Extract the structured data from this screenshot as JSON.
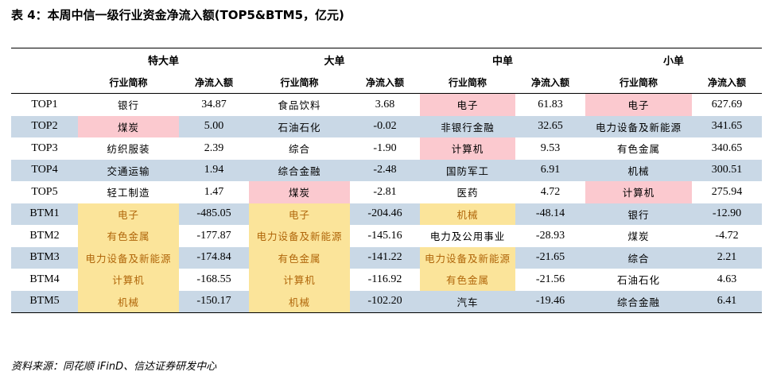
{
  "title": "表 4：本周中信一级行业资金净流入额(TOP5&BTM5，亿元)",
  "groups": [
    "特大单",
    "大单",
    "中单",
    "小单"
  ],
  "sub_headers": {
    "name": "行业简称",
    "value": "净流入额"
  },
  "rows": [
    {
      "label": "TOP1",
      "cells": [
        {
          "name": "银行",
          "value": "34.87",
          "hl": ""
        },
        {
          "name": "食品饮料",
          "value": "3.68",
          "hl": ""
        },
        {
          "name": "电子",
          "value": "61.83",
          "hl": "pink"
        },
        {
          "name": "电子",
          "value": "627.69",
          "hl": "pink"
        }
      ]
    },
    {
      "label": "TOP2",
      "cells": [
        {
          "name": "煤炭",
          "value": "5.00",
          "hl": "pink"
        },
        {
          "name": "石油石化",
          "value": "-0.02",
          "hl": ""
        },
        {
          "name": "非银行金融",
          "value": "32.65",
          "hl": ""
        },
        {
          "name": "电力设备及新能源",
          "value": "341.65",
          "hl": ""
        }
      ]
    },
    {
      "label": "TOP3",
      "cells": [
        {
          "name": "纺织服装",
          "value": "2.39",
          "hl": ""
        },
        {
          "name": "综合",
          "value": "-1.90",
          "hl": ""
        },
        {
          "name": "计算机",
          "value": "9.53",
          "hl": "pink"
        },
        {
          "name": "有色金属",
          "value": "340.65",
          "hl": ""
        }
      ]
    },
    {
      "label": "TOP4",
      "cells": [
        {
          "name": "交通运输",
          "value": "1.94",
          "hl": ""
        },
        {
          "name": "综合金融",
          "value": "-2.48",
          "hl": ""
        },
        {
          "name": "国防军工",
          "value": "6.91",
          "hl": ""
        },
        {
          "name": "机械",
          "value": "300.51",
          "hl": ""
        }
      ]
    },
    {
      "label": "TOP5",
      "cells": [
        {
          "name": "轻工制造",
          "value": "1.47",
          "hl": ""
        },
        {
          "name": "煤炭",
          "value": "-2.81",
          "hl": "pink"
        },
        {
          "name": "医药",
          "value": "4.72",
          "hl": ""
        },
        {
          "name": "计算机",
          "value": "275.94",
          "hl": "pink"
        }
      ]
    },
    {
      "label": "BTM1",
      "cells": [
        {
          "name": "电子",
          "value": "-485.05",
          "hl": "yel"
        },
        {
          "name": "电子",
          "value": "-204.46",
          "hl": "yel"
        },
        {
          "name": "机械",
          "value": "-48.14",
          "hl": "yel"
        },
        {
          "name": "银行",
          "value": "-12.90",
          "hl": ""
        }
      ]
    },
    {
      "label": "BTM2",
      "cells": [
        {
          "name": "有色金属",
          "value": "-177.87",
          "hl": "yel"
        },
        {
          "name": "电力设备及新能源",
          "value": "-145.16",
          "hl": "yel"
        },
        {
          "name": "电力及公用事业",
          "value": "-28.93",
          "hl": ""
        },
        {
          "name": "煤炭",
          "value": "-4.72",
          "hl": ""
        }
      ]
    },
    {
      "label": "BTM3",
      "cells": [
        {
          "name": "电力设备及新能源",
          "value": "-174.84",
          "hl": "yel"
        },
        {
          "name": "有色金属",
          "value": "-141.22",
          "hl": "yel"
        },
        {
          "name": "电力设备及新能源",
          "value": "-21.65",
          "hl": "yel"
        },
        {
          "name": "综合",
          "value": "2.21",
          "hl": ""
        }
      ]
    },
    {
      "label": "BTM4",
      "cells": [
        {
          "name": "计算机",
          "value": "-168.55",
          "hl": "yel"
        },
        {
          "name": "计算机",
          "value": "-116.92",
          "hl": "yel"
        },
        {
          "name": "有色金属",
          "value": "-21.56",
          "hl": "yel"
        },
        {
          "name": "石油石化",
          "value": "4.63",
          "hl": ""
        }
      ]
    },
    {
      "label": "BTM5",
      "cells": [
        {
          "name": "机械",
          "value": "-150.17",
          "hl": "yel"
        },
        {
          "name": "机械",
          "value": "-102.20",
          "hl": "yel"
        },
        {
          "name": "汽车",
          "value": "-19.46",
          "hl": ""
        },
        {
          "name": "综合金融",
          "value": "6.41",
          "hl": ""
        }
      ]
    }
  ],
  "source": "资料来源：同花顺 iFinD、信达证券研发中心",
  "colors": {
    "blue_row": "#c9d8e6",
    "pink_highlight": "#fbc9cf",
    "yellow_highlight": "#fbe49a",
    "yellow_text": "#b0660a"
  }
}
